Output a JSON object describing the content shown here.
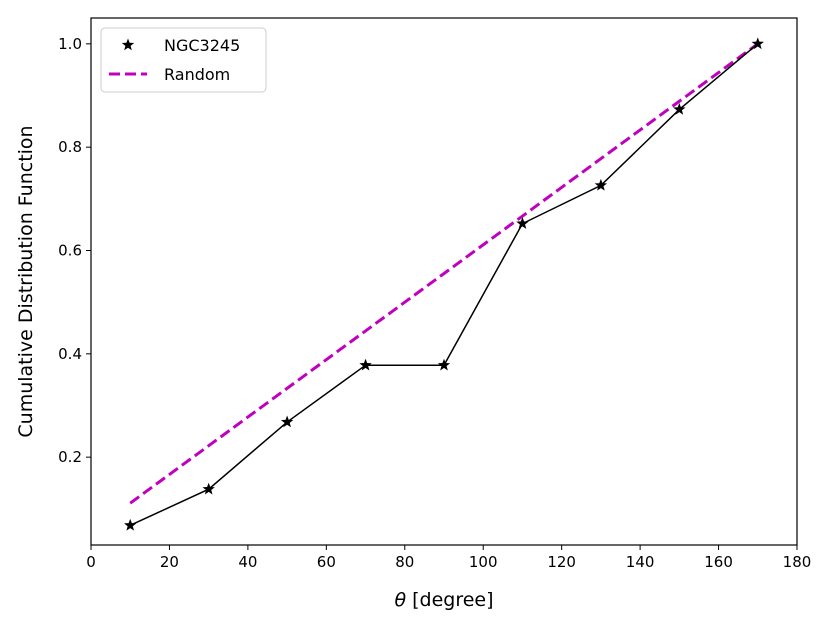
{
  "chart_data": {
    "type": "line",
    "title": "",
    "xlabel_symbol": "θ",
    "xlabel_unit": " [degree]",
    "ylabel": "Cumulative Distribution Function",
    "xlim": [
      0,
      180
    ],
    "ylim": [
      0.03,
      1.05
    ],
    "xticks": [
      0,
      20,
      40,
      60,
      80,
      100,
      120,
      140,
      160,
      180
    ],
    "xtick_labels": [
      "0",
      "20",
      "40",
      "60",
      "80",
      "100",
      "120",
      "140",
      "160",
      "180"
    ],
    "yticks": [
      0.2,
      0.4,
      0.6,
      0.8,
      1.0
    ],
    "ytick_labels": [
      "0.2",
      "0.4",
      "0.6",
      "0.8",
      "1.0"
    ],
    "grid": false,
    "legend_position": "top-left",
    "series": [
      {
        "name": "NGC3245",
        "style": "black line with star markers",
        "color": "#000000",
        "x": [
          10,
          30,
          50,
          70,
          90,
          110,
          130,
          150,
          170
        ],
        "y": [
          0.068,
          0.138,
          0.268,
          0.378,
          0.378,
          0.652,
          0.726,
          0.873,
          1.0
        ]
      },
      {
        "name": "Random",
        "style": "dashed line",
        "color": "#bf00bf",
        "x": [
          10,
          170
        ],
        "y": [
          0.111,
          1.0
        ]
      }
    ]
  }
}
